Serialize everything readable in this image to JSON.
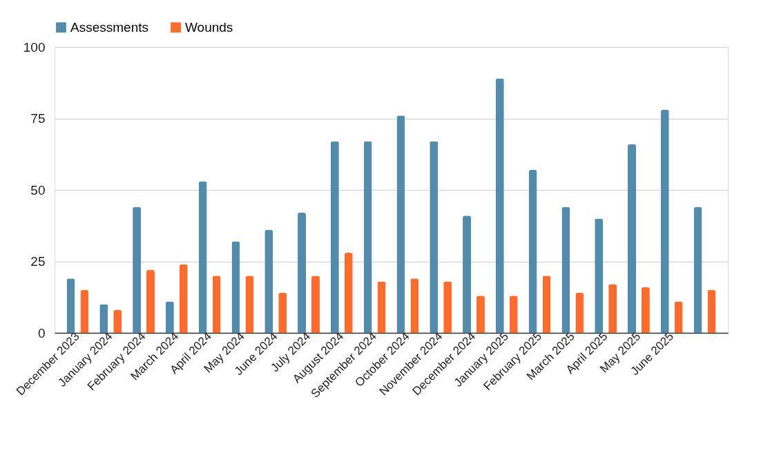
{
  "chart_data": {
    "type": "bar",
    "categories": [
      "December 2023",
      "January 2024",
      "February 2024",
      "March 2024",
      "April 2024",
      "May 2024",
      "June 2024",
      "July 2024",
      "August 2024",
      "September 2024",
      "October 2024",
      "November 2024",
      "December 2024",
      "January 2025",
      "February 2025",
      "March 2025",
      "April 2025",
      "May 2025",
      "June 2025",
      null
    ],
    "series": [
      {
        "name": "Assessments",
        "color": "#528bab",
        "values": [
          19,
          10,
          44,
          11,
          53,
          32,
          36,
          42,
          67,
          67,
          76,
          67,
          41,
          89,
          57,
          44,
          40,
          66,
          78,
          44
        ]
      },
      {
        "name": "Wounds",
        "color": "#ff6d2e",
        "values": [
          15,
          8,
          22,
          24,
          20,
          20,
          14,
          20,
          28,
          18,
          19,
          18,
          13,
          13,
          20,
          14,
          17,
          16,
          11,
          15
        ]
      }
    ],
    "ylim": [
      0,
      100
    ],
    "yticks": [
      0,
      25,
      50,
      75,
      100
    ],
    "grid": "y",
    "legend": "top"
  }
}
